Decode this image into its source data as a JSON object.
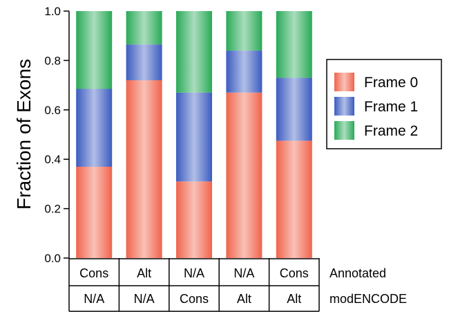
{
  "chart_data": {
    "type": "bar",
    "stacked": true,
    "ylabel": "Fraction of Exons",
    "ylim": [
      0,
      1
    ],
    "yticks": [
      "0.0",
      "0.2",
      "0.4",
      "0.6",
      "0.8",
      "1.0"
    ],
    "row_labels": [
      "Annotated",
      "modENCODE"
    ],
    "category_rows": [
      [
        "Cons",
        "Alt",
        "N/A",
        "N/A",
        "Cons"
      ],
      [
        "N/A",
        "N/A",
        "Cons",
        "Alt",
        "Alt"
      ]
    ],
    "series": [
      {
        "name": "Frame 0",
        "color": "#f0644c",
        "values": [
          0.37,
          0.72,
          0.31,
          0.67,
          0.475
        ]
      },
      {
        "name": "Frame 1",
        "color": "#3c5cc0",
        "values": [
          0.315,
          0.145,
          0.36,
          0.17,
          0.255
        ]
      },
      {
        "name": "Frame 2",
        "color": "#2aaa58",
        "values": [
          0.315,
          0.135,
          0.33,
          0.16,
          0.27
        ]
      }
    ],
    "legend_position": "right",
    "grid": false
  }
}
